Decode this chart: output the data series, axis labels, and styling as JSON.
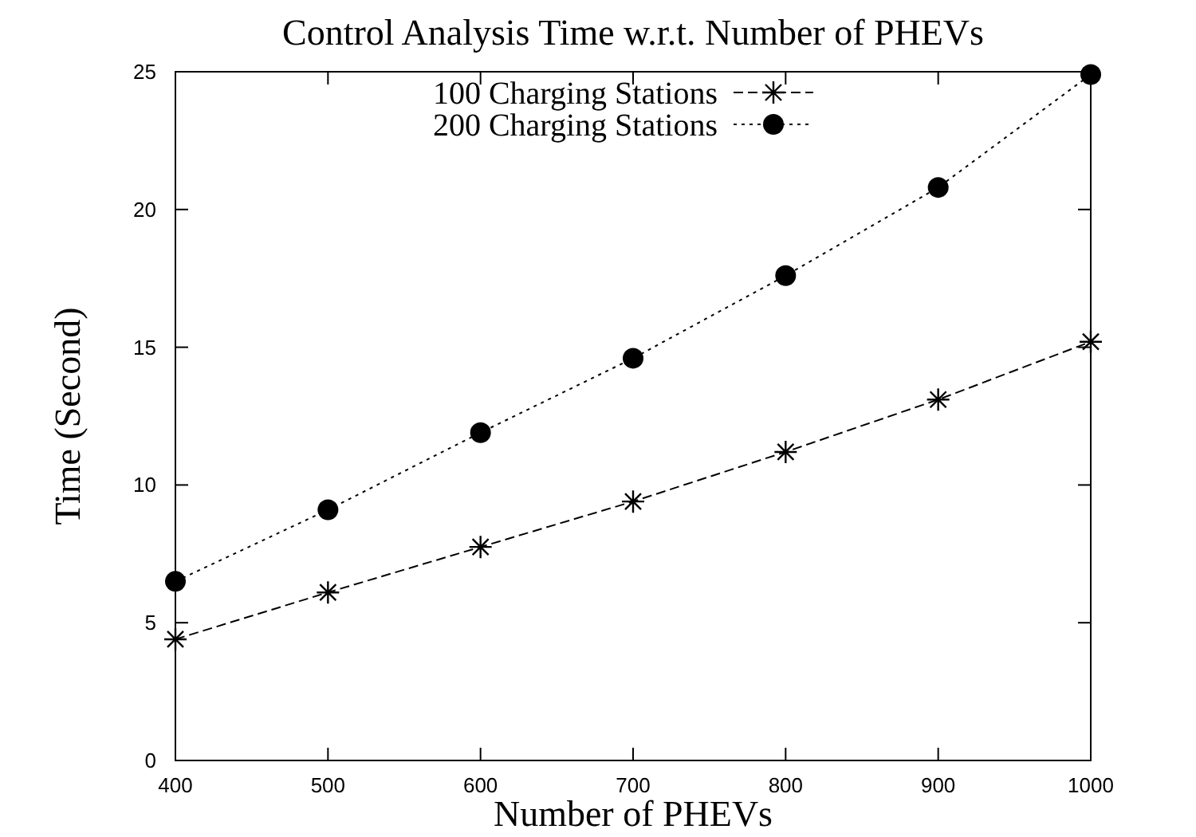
{
  "chart_data": {
    "type": "line",
    "title": "Control Analysis Time w.r.t. Number of PHEVs",
    "xlabel": "Number of PHEVs",
    "ylabel": "Time (Second)",
    "x": [
      400,
      500,
      600,
      700,
      800,
      900,
      1000
    ],
    "series": [
      {
        "name": "100 Charging Stations",
        "color": "#000000",
        "marker": "cross",
        "line_style": "dashed",
        "values": [
          4.4,
          6.1,
          7.75,
          9.4,
          11.2,
          13.1,
          15.2
        ]
      },
      {
        "name": "200 Charging Stations",
        "color": "#000000",
        "marker": "circle",
        "line_style": "dotted",
        "values": [
          6.5,
          9.1,
          11.9,
          14.6,
          17.6,
          20.8,
          24.9
        ]
      }
    ],
    "xlim": [
      400,
      1000
    ],
    "xticks": [
      400,
      500,
      600,
      700,
      800,
      900,
      1000
    ],
    "ylim": [
      0,
      25
    ],
    "yticks": [
      0,
      5,
      10,
      15,
      20,
      25
    ],
    "grid": false,
    "legend": "top"
  }
}
